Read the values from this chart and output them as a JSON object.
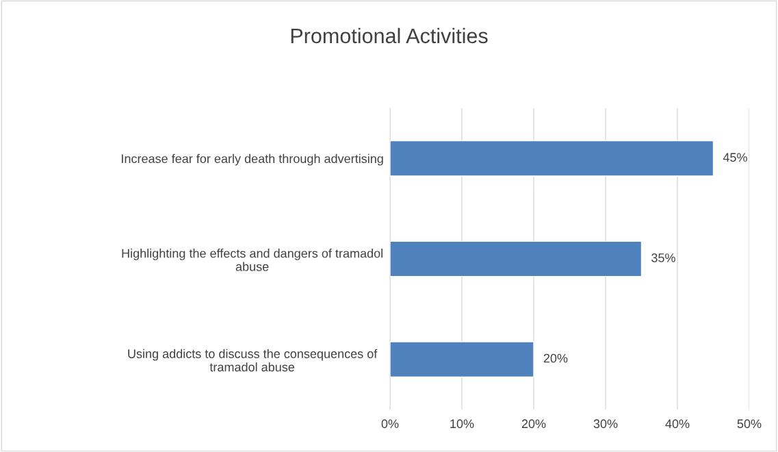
{
  "chart_data": {
    "type": "bar",
    "title": "Promotional Activities",
    "orientation": "horizontal",
    "categories": [
      "Increase fear for early death through advertising",
      "Highlighting the effects and dangers of tramadol abuse",
      "Using addicts to discuss the consequences of tramadol abuse"
    ],
    "values": [
      45,
      35,
      20
    ],
    "color": "#4f81bd",
    "value_labels": [
      "45%",
      "35%",
      "20%"
    ],
    "xlim": [
      0,
      50
    ],
    "xticks": [
      {
        "value": 0,
        "label": "0%"
      },
      {
        "value": 10,
        "label": "10%"
      },
      {
        "value": 20,
        "label": "20%"
      },
      {
        "value": 30,
        "label": "30%"
      },
      {
        "value": 40,
        "label": "40%"
      },
      {
        "value": 50,
        "label": "50%"
      }
    ],
    "grid": "x",
    "legend": false
  }
}
